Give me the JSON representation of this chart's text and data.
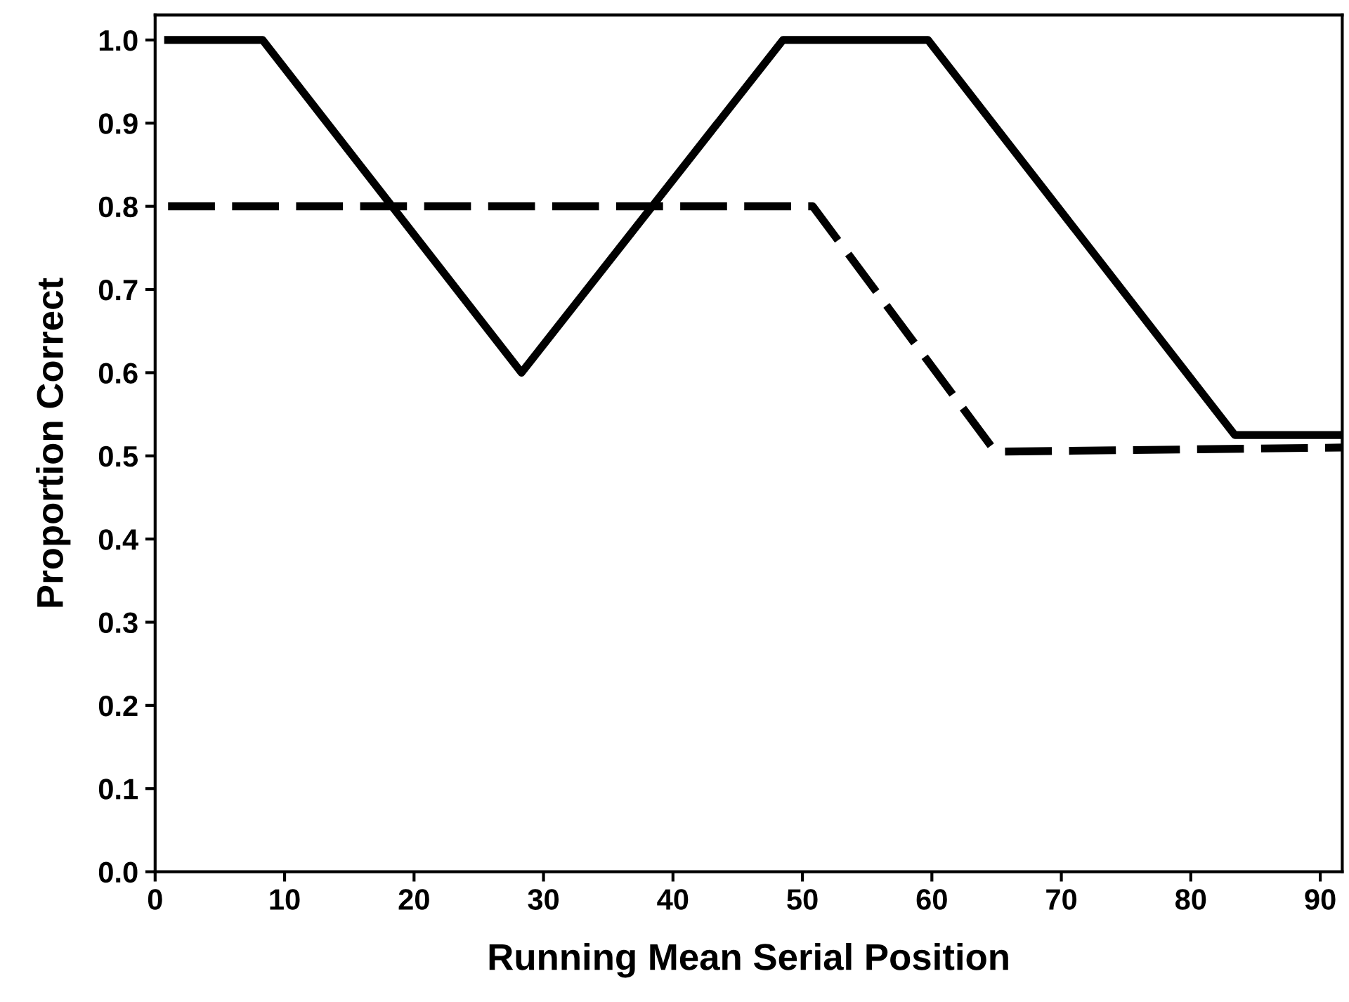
{
  "chart_data": {
    "type": "line",
    "xlabel": "Running Mean Serial Position",
    "ylabel": "Proportion Correct",
    "xlim": [
      0,
      91.7
    ],
    "xticks": [
      0,
      10,
      20,
      30,
      40,
      50,
      60,
      70,
      80,
      90
    ],
    "ylim": [
      0,
      1.03
    ],
    "yticks": [
      {
        "value": 0,
        "label": "0.0"
      },
      {
        "value": 0.1,
        "label": "0.1"
      },
      {
        "value": 0.2,
        "label": "0.2"
      },
      {
        "value": 0.3,
        "label": "0.3"
      },
      {
        "value": 0.4,
        "label": "0.4"
      },
      {
        "value": 0.5,
        "label": "0.5"
      },
      {
        "value": 0.6,
        "label": "0.6"
      },
      {
        "value": 0.7,
        "label": "0.7"
      },
      {
        "value": 0.8,
        "label": "0.8"
      },
      {
        "value": 0.9,
        "label": "0.9"
      },
      {
        "value": 1,
        "label": "1.0"
      }
    ],
    "grid": false,
    "legend": false,
    "marker": "none",
    "series": [
      {
        "color": "#000000",
        "line_style": "solid",
        "x": [
          1,
          8.3,
          28.3,
          48.5,
          59.7,
          83.4,
          91.7
        ],
        "values": [
          1.0,
          1.0,
          0.6,
          1.0,
          1.0,
          0.525,
          0.525
        ]
      },
      {
        "color": "#000000",
        "line_style": "dashed",
        "x": [
          1,
          50.8,
          64.9,
          91.7
        ],
        "values": [
          0.8,
          0.8,
          0.505,
          0.51
        ]
      }
    ]
  }
}
